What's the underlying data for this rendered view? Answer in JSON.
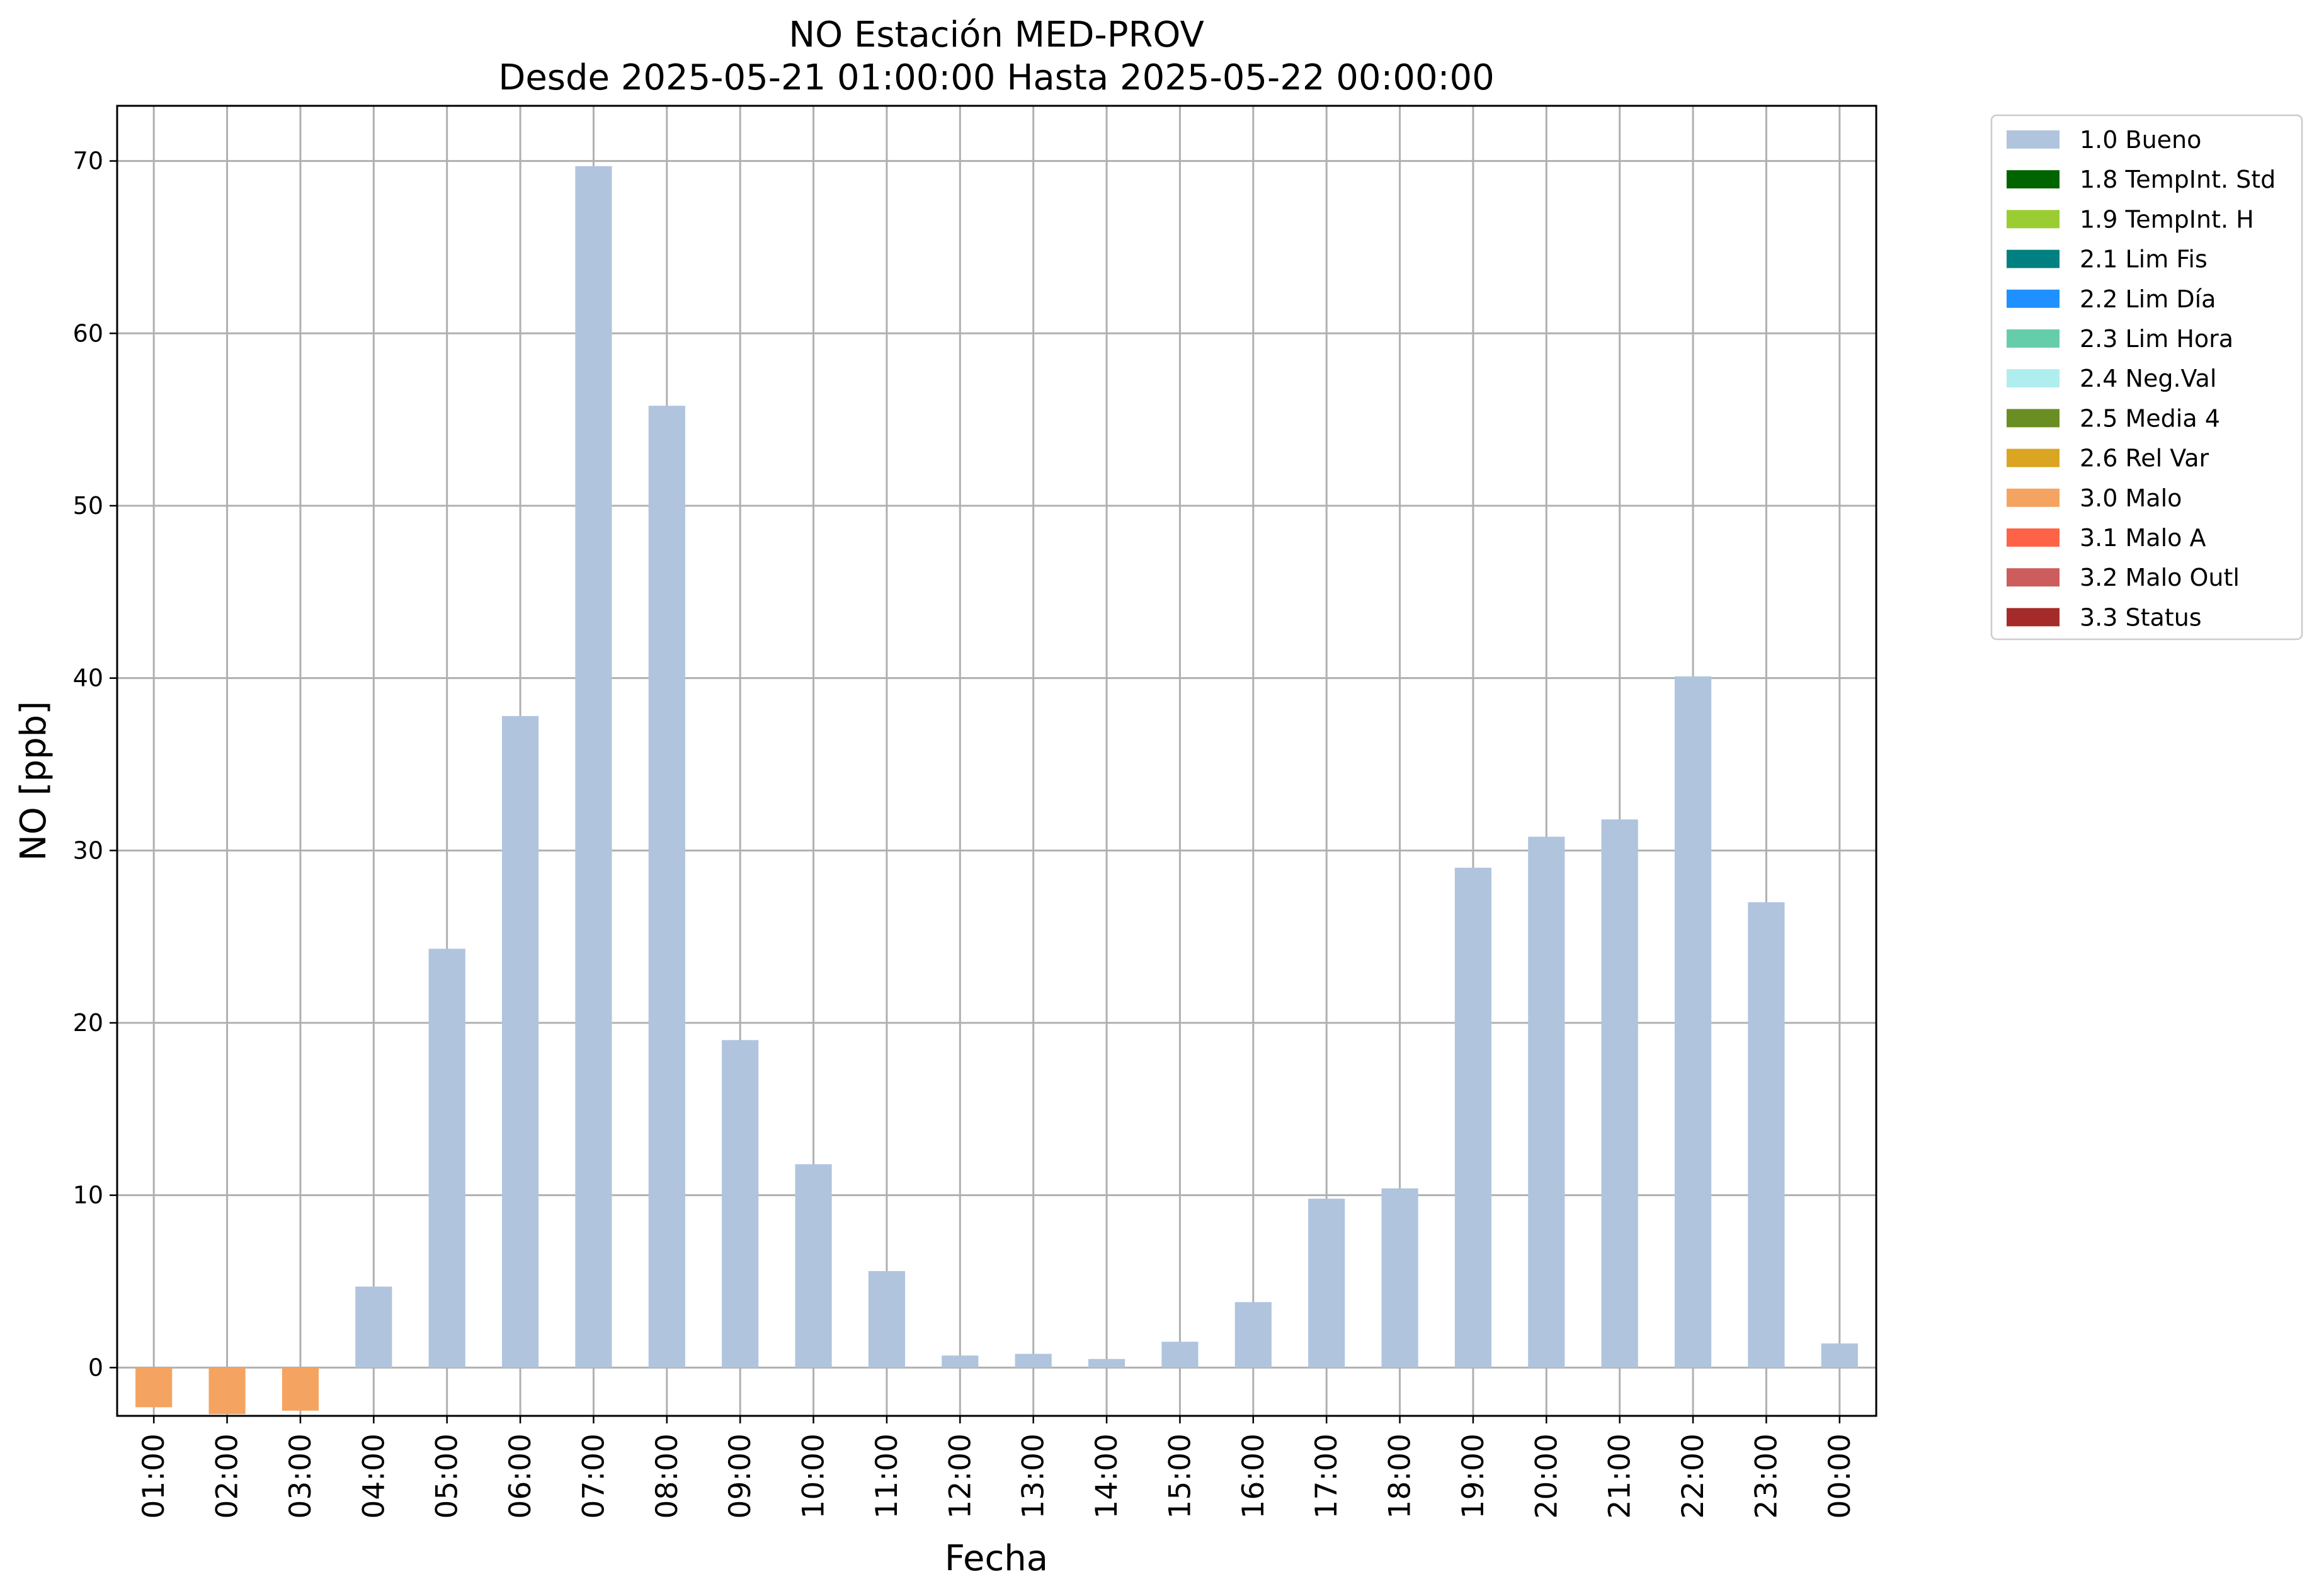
{
  "chart_data": {
    "type": "bar",
    "title": "NO Estación MED-PROV",
    "subtitle": "Desde 2025-05-21 01:00:00 Hasta 2025-05-22 00:00:00",
    "xlabel": "Fecha",
    "ylabel": "NO [ppb]",
    "ylim": [
      -2.8,
      73.2
    ],
    "yticks": [
      0,
      10,
      20,
      30,
      40,
      50,
      60,
      70
    ],
    "grid": true,
    "legend_position": "outside-top-right",
    "categories": [
      "01:00",
      "02:00",
      "03:00",
      "04:00",
      "05:00",
      "06:00",
      "07:00",
      "08:00",
      "09:00",
      "10:00",
      "11:00",
      "12:00",
      "13:00",
      "14:00",
      "15:00",
      "16:00",
      "17:00",
      "18:00",
      "19:00",
      "20:00",
      "21:00",
      "22:00",
      "23:00",
      "00:00"
    ],
    "values": [
      -2.3,
      -2.7,
      -2.5,
      4.7,
      24.3,
      37.8,
      69.7,
      55.8,
      19.0,
      11.8,
      5.6,
      0.7,
      0.8,
      0.5,
      1.5,
      3.8,
      9.8,
      10.4,
      29.0,
      30.8,
      31.8,
      40.1,
      27.0,
      1.4
    ],
    "flags": [
      "3.0 Malo",
      "3.0 Malo",
      "3.0 Malo",
      "1.0 Bueno",
      "1.0 Bueno",
      "1.0 Bueno",
      "1.0 Bueno",
      "1.0 Bueno",
      "1.0 Bueno",
      "1.0 Bueno",
      "1.0 Bueno",
      "1.0 Bueno",
      "1.0 Bueno",
      "1.0 Bueno",
      "1.0 Bueno",
      "1.0 Bueno",
      "1.0 Bueno",
      "1.0 Bueno",
      "1.0 Bueno",
      "1.0 Bueno",
      "1.0 Bueno",
      "1.0 Bueno",
      "1.0 Bueno",
      "1.0 Bueno"
    ],
    "legend": [
      {
        "label": "1.0 Bueno",
        "color": "#b0c4de"
      },
      {
        "label": "1.8 TempInt. Std",
        "color": "#006400"
      },
      {
        "label": "1.9 TempInt. H",
        "color": "#9acd32"
      },
      {
        "label": "2.1 Lim Fis",
        "color": "#008080"
      },
      {
        "label": "2.2 Lim Día",
        "color": "#1e90ff"
      },
      {
        "label": "2.3 Lim Hora",
        "color": "#66cdaa"
      },
      {
        "label": "2.4 Neg.Val",
        "color": "#afeeee"
      },
      {
        "label": "2.5 Media 4",
        "color": "#6b8e23"
      },
      {
        "label": "2.6 Rel Var",
        "color": "#daa520"
      },
      {
        "label": "3.0 Malo",
        "color": "#f4a460"
      },
      {
        "label": "3.1 Malo A",
        "color": "#ff6347"
      },
      {
        "label": "3.2 Malo Outl",
        "color": "#cd5c5c"
      },
      {
        "label": "3.3 Status",
        "color": "#a52a2a"
      }
    ]
  }
}
